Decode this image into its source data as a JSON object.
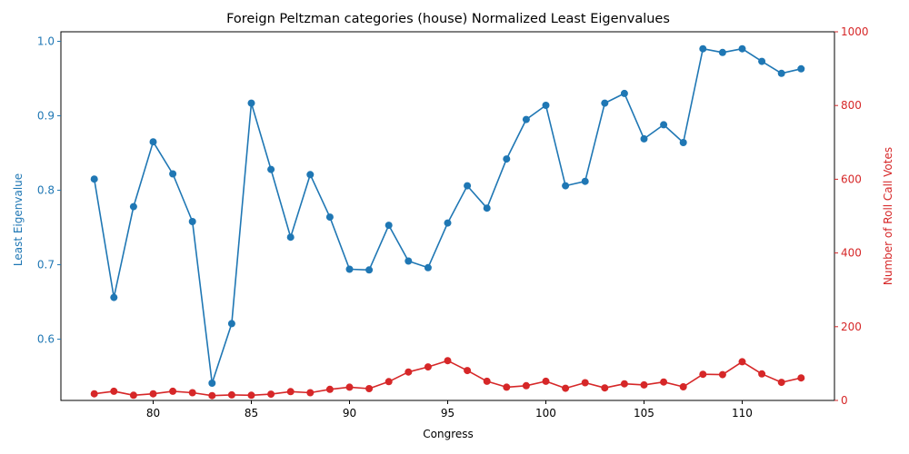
{
  "chart_data": {
    "type": "line",
    "title": "Foreign Peltzman categories (house) Normalized Least Eigenvalues",
    "xlabel": "Congress",
    "ylabel_left": "Least Eigenvalue",
    "ylabel_right": "Number of Roll Call Votes",
    "xlim": [
      75.3,
      114.7
    ],
    "ylim_left": [
      0.5178,
      1.0128
    ],
    "ylim_right": [
      0,
      1000
    ],
    "x_ticks": [
      80,
      85,
      90,
      95,
      100,
      105,
      110
    ],
    "y_left_ticks": [
      0.6,
      0.7,
      0.8,
      0.9,
      1.0
    ],
    "y_right_ticks": [
      0,
      200,
      400,
      600,
      800,
      1000
    ],
    "grid": false,
    "legend": "none",
    "x": [
      77,
      78,
      79,
      80,
      81,
      82,
      83,
      84,
      85,
      86,
      87,
      88,
      89,
      90,
      91,
      92,
      93,
      94,
      95,
      96,
      97,
      98,
      99,
      100,
      101,
      102,
      103,
      104,
      105,
      106,
      107,
      108,
      109,
      110,
      111,
      112,
      113
    ],
    "series": [
      {
        "axis": "left",
        "color": "#1f77b4",
        "values": [
          0.815,
          0.656,
          0.778,
          0.865,
          0.822,
          0.758,
          0.541,
          0.621,
          0.917,
          0.828,
          0.737,
          0.821,
          0.764,
          0.694,
          0.693,
          0.753,
          0.705,
          0.696,
          0.756,
          0.806,
          0.776,
          0.842,
          0.895,
          0.914,
          0.806,
          0.812,
          0.917,
          0.93,
          0.869,
          0.888,
          0.864,
          0.99,
          0.985,
          0.99,
          0.973,
          0.957,
          0.963
        ]
      },
      {
        "axis": "right",
        "color": "#d62728",
        "values": [
          18,
          25,
          14,
          18,
          25,
          21,
          13,
          15,
          14,
          17,
          24,
          21,
          30,
          36,
          32,
          51,
          77,
          91,
          108,
          81,
          52,
          36,
          40,
          52,
          33,
          48,
          34,
          45,
          42,
          50,
          37,
          71,
          70,
          105,
          72,
          49,
          61
        ]
      }
    ]
  },
  "colors": {
    "left_axis": "#1f77b4",
    "right_axis": "#d62728",
    "frame": "#000000",
    "background": "#ffffff"
  }
}
